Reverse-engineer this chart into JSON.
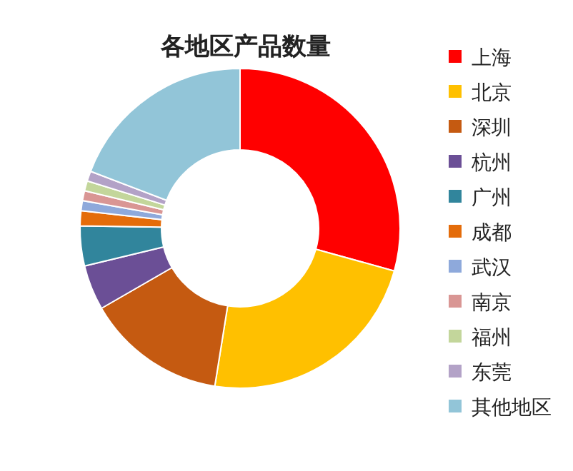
{
  "chart_data": {
    "type": "donut",
    "title": "各地区产品数量",
    "categories": [
      "上海",
      "北京",
      "深圳",
      "杭州",
      "广州",
      "成都",
      "武汉",
      "南京",
      "福州",
      "东莞",
      "其他地区"
    ],
    "values": [
      29,
      23,
      14,
      4.5,
      4,
      1.5,
      1,
      1,
      1,
      1,
      19
    ],
    "colors": [
      "#ff0000",
      "#ffc000",
      "#c55a11",
      "#6b4f96",
      "#31859c",
      "#e46c0a",
      "#8ea9db",
      "#d99694",
      "#c3d69b",
      "#b3a2c7",
      "#92c5d8"
    ],
    "legend": "right"
  }
}
